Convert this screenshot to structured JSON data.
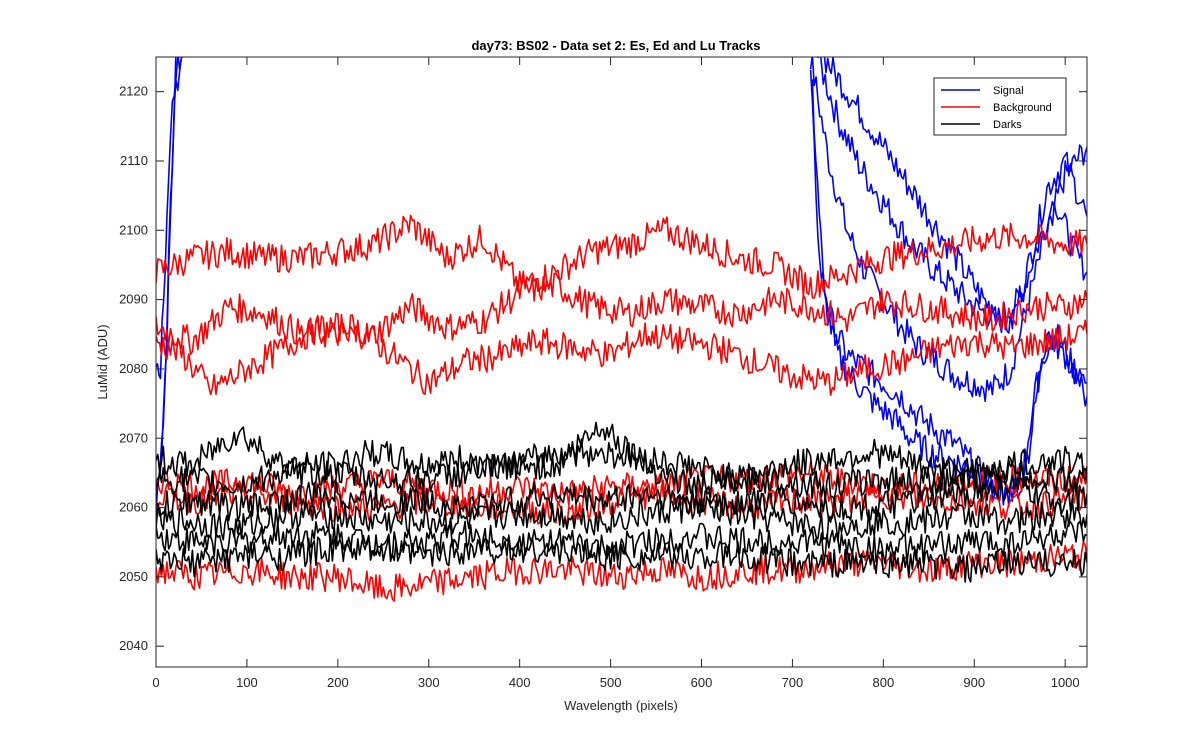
{
  "chart_data": {
    "type": "line",
    "title": "day73: BS02 - Data set 2: Es, Ed and Lu Tracks",
    "xlabel": "Wavelength (pixels)",
    "ylabel": "LuMid (ADU)",
    "xlim": [
      0,
      1024
    ],
    "ylim": [
      2037,
      2125
    ],
    "xticks": [
      0,
      100,
      200,
      300,
      400,
      500,
      600,
      700,
      800,
      900,
      1000
    ],
    "xtick_labels": [
      "0",
      "100",
      "200",
      "300",
      "400",
      "500",
      "600",
      "700",
      "800",
      "900",
      "1000"
    ],
    "yticks": [
      2040,
      2050,
      2060,
      2070,
      2080,
      2090,
      2100,
      2110,
      2120
    ],
    "ytick_labels": [
      "2040",
      "2050",
      "2060",
      "2070",
      "2080",
      "2090",
      "2100",
      "2110",
      "2120"
    ],
    "grid": false,
    "legend_position": "top-right",
    "legend": [
      {
        "label": "Signal",
        "color": "#0000ff"
      },
      {
        "label": "Background",
        "color": "#ff0000"
      },
      {
        "label": "Darks",
        "color": "#000000"
      }
    ],
    "series": [
      {
        "name": "Signal",
        "color": "#0000ff",
        "x": [
          0,
          6,
          12,
          18,
          22,
          30
        ],
        "y": [
          2062,
          2068,
          2085,
          2110,
          2125,
          2125
        ]
      },
      {
        "name": "Signal",
        "color": "#0000ff",
        "x": [
          0,
          8,
          14,
          20,
          28
        ],
        "y": [
          2060,
          2072,
          2095,
          2118,
          2125
        ]
      },
      {
        "name": "Signal",
        "color": "#0000ff",
        "x": [
          0,
          5,
          10,
          16,
          24
        ],
        "y": [
          2080,
          2080,
          2095,
          2115,
          2125
        ]
      },
      {
        "name": "Signal",
        "color": "#0000ff",
        "x": [
          720,
          740,
          760,
          780,
          800,
          820,
          840,
          860,
          880,
          900,
          920,
          940,
          960,
          980,
          1000,
          1024
        ],
        "y": [
          2125,
          2110,
          2100,
          2094,
          2090,
          2086,
          2083,
          2081,
          2079,
          2078,
          2077,
          2080,
          2090,
          2100,
          2108,
          2112
        ]
      },
      {
        "name": "Signal",
        "color": "#0000ff",
        "x": [
          728,
          750,
          775,
          800,
          825,
          850,
          875,
          900,
          925,
          950,
          970,
          990,
          1010,
          1024
        ],
        "y": [
          2125,
          2116,
          2109,
          2104,
          2099,
          2095,
          2092,
          2089,
          2087,
          2090,
          2098,
          2104,
          2097,
          2094
        ]
      },
      {
        "name": "Signal",
        "color": "#0000ff",
        "x": [
          735,
          760,
          790,
          820,
          850,
          880,
          910,
          940,
          960,
          980,
          1000,
          1024
        ],
        "y": [
          2125,
          2120,
          2114,
          2108,
          2102,
          2096,
          2090,
          2086,
          2095,
          2106,
          2110,
          2102
        ]
      },
      {
        "name": "Signal",
        "color": "#0000ff",
        "x": [
          720,
          730,
          745,
          760,
          780,
          800,
          820,
          840,
          860,
          880,
          900,
          920,
          940,
          960,
          975,
          990,
          1010,
          1024
        ],
        "y": [
          2122,
          2095,
          2086,
          2082,
          2080,
          2078,
          2076,
          2073,
          2071,
          2069,
          2066,
          2063,
          2062,
          2068,
          2082,
          2085,
          2080,
          2078
        ]
      },
      {
        "name": "Signal",
        "color": "#0000ff",
        "x": [
          722,
          735,
          750,
          770,
          790,
          810,
          830,
          850,
          870,
          890,
          910,
          930,
          950,
          965,
          980,
          1000,
          1024
        ],
        "y": [
          2120,
          2090,
          2082,
          2078,
          2075,
          2073,
          2070,
          2068,
          2067,
          2066,
          2064,
          2062,
          2062,
          2075,
          2085,
          2082,
          2076
        ]
      },
      {
        "name": "Background",
        "color": "#ff0000",
        "x": [
          0,
          40,
          80,
          120,
          160,
          200,
          240,
          280,
          320,
          360,
          400,
          440,
          480,
          520,
          560,
          600,
          640,
          680,
          720,
          760,
          800,
          840,
          880,
          920,
          960,
          1000,
          1024
        ],
        "y": [
          2094,
          2096,
          2097,
          2096,
          2096,
          2097,
          2098,
          2101,
          2096,
          2099,
          2092,
          2094,
          2097,
          2098,
          2100,
          2098,
          2096,
          2095,
          2092,
          2094,
          2096,
          2097,
          2098,
          2099,
          2099,
          2098,
          2098
        ]
      },
      {
        "name": "Background",
        "color": "#ff0000",
        "x": [
          0,
          40,
          80,
          120,
          160,
          200,
          240,
          280,
          320,
          360,
          400,
          440,
          480,
          520,
          560,
          600,
          640,
          680,
          720,
          760,
          800,
          840,
          880,
          920,
          960,
          1000,
          1024
        ],
        "y": [
          2086,
          2084,
          2089,
          2088,
          2085,
          2085,
          2085,
          2089,
          2086,
          2087,
          2091,
          2092,
          2089,
          2088,
          2090,
          2089,
          2088,
          2090,
          2089,
          2087,
          2090,
          2089,
          2088,
          2087,
          2089,
          2089,
          2090
        ]
      },
      {
        "name": "Background",
        "color": "#ff0000",
        "x": [
          0,
          30,
          60,
          100,
          140,
          180,
          220,
          260,
          300,
          340,
          380,
          420,
          460,
          500,
          540,
          580,
          620,
          660,
          700,
          740,
          780,
          820,
          860,
          900,
          940,
          980,
          1024
        ],
        "y": [
          2084,
          2082,
          2077,
          2080,
          2083,
          2086,
          2086,
          2082,
          2078,
          2081,
          2082,
          2084,
          2083,
          2082,
          2085,
          2084,
          2083,
          2081,
          2079,
          2078,
          2080,
          2081,
          2083,
          2084,
          2083,
          2084,
          2085
        ]
      },
      {
        "name": "Background",
        "color": "#ff0000",
        "x": [
          0,
          50,
          100,
          150,
          200,
          250,
          300,
          350,
          400,
          450,
          500,
          550,
          600,
          650,
          700,
          750,
          800,
          850,
          900,
          950,
          1000,
          1024
        ],
        "y": [
          2064,
          2063,
          2064,
          2062,
          2063,
          2064,
          2063,
          2062,
          2063,
          2062,
          2063,
          2063,
          2064,
          2064,
          2065,
          2064,
          2063,
          2063,
          2064,
          2064,
          2064,
          2064
        ]
      },
      {
        "name": "Background",
        "color": "#ff0000",
        "x": [
          0,
          50,
          100,
          150,
          200,
          250,
          300,
          350,
          400,
          450,
          500,
          550,
          600,
          650,
          700,
          750,
          800,
          850,
          900,
          950,
          1000,
          1024
        ],
        "y": [
          2062,
          2061,
          2062,
          2061,
          2060,
          2060,
          2061,
          2060,
          2060,
          2059,
          2061,
          2062,
          2061,
          2060,
          2061,
          2061,
          2062,
          2061,
          2061,
          2060,
          2061,
          2061
        ]
      },
      {
        "name": "Background",
        "color": "#ff0000",
        "x": [
          0,
          50,
          100,
          150,
          200,
          250,
          300,
          350,
          400,
          450,
          500,
          550,
          600,
          650,
          700,
          750,
          800,
          850,
          900,
          950,
          1000,
          1024
        ],
        "y": [
          2051,
          2050,
          2051,
          2050,
          2050,
          2048,
          2049,
          2050,
          2051,
          2051,
          2050,
          2051,
          2050,
          2051,
          2051,
          2052,
          2052,
          2051,
          2052,
          2052,
          2053,
          2053
        ]
      },
      {
        "name": "Darks",
        "color": "#000000",
        "x": [
          0,
          40,
          90,
          140,
          190,
          240,
          290,
          340,
          390,
          440,
          490,
          540,
          590,
          640,
          690,
          740,
          790,
          840,
          890,
          940,
          990,
          1024
        ],
        "y": [
          2067,
          2066,
          2071,
          2066,
          2066,
          2068,
          2066,
          2067,
          2066,
          2068,
          2068,
          2067,
          2066,
          2064,
          2066,
          2067,
          2068,
          2066,
          2065,
          2066,
          2067,
          2066
        ]
      },
      {
        "name": "Darks",
        "color": "#000000",
        "x": [
          0,
          40,
          90,
          140,
          190,
          240,
          290,
          340,
          390,
          440,
          490,
          540,
          590,
          640,
          690,
          740,
          790,
          840,
          890,
          940,
          990,
          1024
        ],
        "y": [
          2064,
          2064,
          2063,
          2065,
          2065,
          2064,
          2064,
          2065,
          2066,
          2066,
          2072,
          2066,
          2063,
          2064,
          2064,
          2063,
          2064,
          2064,
          2064,
          2065,
          2064,
          2064
        ]
      },
      {
        "name": "Darks",
        "color": "#000000",
        "x": [
          0,
          40,
          90,
          140,
          190,
          240,
          290,
          340,
          390,
          440,
          490,
          540,
          590,
          640,
          690,
          740,
          790,
          840,
          890,
          940,
          990,
          1024
        ],
        "y": [
          2060,
          2061,
          2060,
          2061,
          2062,
          2061,
          2061,
          2060,
          2061,
          2062,
          2061,
          2062,
          2061,
          2061,
          2061,
          2060,
          2060,
          2061,
          2062,
          2063,
          2061,
          2062
        ]
      },
      {
        "name": "Darks",
        "color": "#000000",
        "x": [
          0,
          40,
          90,
          140,
          190,
          240,
          290,
          340,
          390,
          440,
          490,
          540,
          590,
          640,
          690,
          740,
          790,
          840,
          890,
          940,
          990,
          1024
        ],
        "y": [
          2058,
          2058,
          2057,
          2059,
          2059,
          2058,
          2058,
          2058,
          2059,
          2059,
          2058,
          2059,
          2060,
          2059,
          2058,
          2057,
          2058,
          2058,
          2059,
          2058,
          2059,
          2059
        ]
      },
      {
        "name": "Darks",
        "color": "#000000",
        "x": [
          0,
          40,
          90,
          140,
          190,
          240,
          290,
          340,
          390,
          440,
          490,
          540,
          590,
          640,
          690,
          740,
          790,
          840,
          890,
          940,
          990,
          1024
        ],
        "y": [
          2056,
          2055,
          2055,
          2056,
          2056,
          2055,
          2055,
          2056,
          2055,
          2055,
          2054,
          2055,
          2056,
          2055,
          2055,
          2055,
          2054,
          2054,
          2055,
          2055,
          2056,
          2056
        ]
      },
      {
        "name": "Darks",
        "color": "#000000",
        "x": [
          0,
          40,
          90,
          140,
          190,
          240,
          290,
          340,
          390,
          440,
          490,
          540,
          590,
          640,
          690,
          740,
          790,
          840,
          890,
          940,
          990,
          1024
        ],
        "y": [
          2052,
          2052,
          2053,
          2053,
          2054,
          2054,
          2053,
          2054,
          2054,
          2054,
          2053,
          2053,
          2053,
          2053,
          2052,
          2052,
          2052,
          2052,
          2051,
          2052,
          2052,
          2052
        ]
      }
    ]
  }
}
